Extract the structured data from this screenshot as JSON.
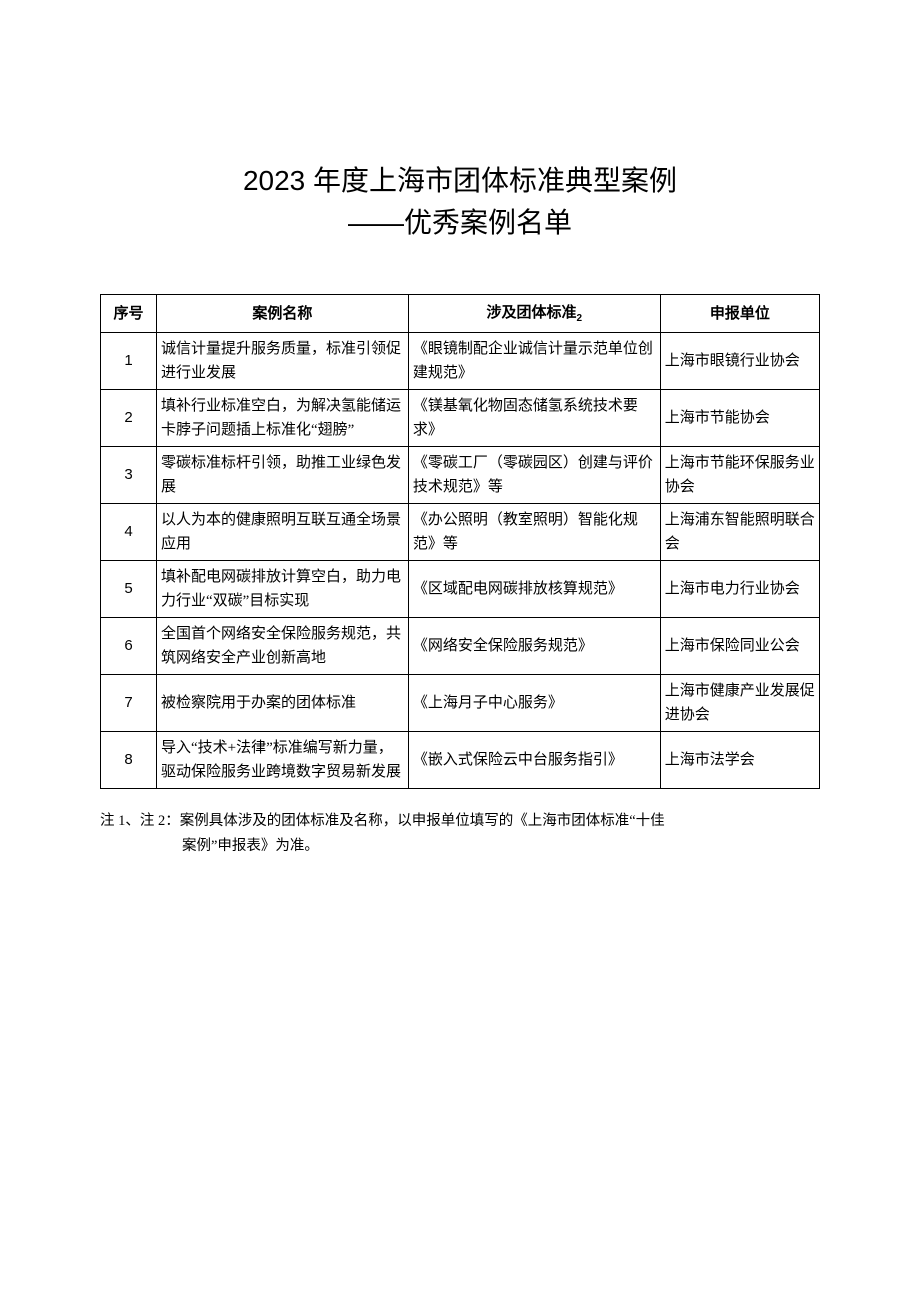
{
  "title": {
    "line1": "2023 年度上海市团体标准典型案例",
    "line2": "——优秀案例名单"
  },
  "table": {
    "columns": {
      "seq": "序号",
      "name": "案例名称",
      "std_prefix": "涉及团体标准",
      "std_sub": "2",
      "org": "申报单位"
    },
    "rows": [
      {
        "seq": "1",
        "name": "诚信计量提升服务质量，标准引领促进行业发展",
        "std": "《眼镜制配企业诚信计量示范单位创建规范》",
        "org": "上海市眼镜行业协会"
      },
      {
        "seq": "2",
        "name": "填补行业标准空白，为解决氢能储运卡脖子问题插上标准化“翅膀”",
        "std": "《镁基氧化物固态储氢系统技术要求》",
        "org": "上海市节能协会"
      },
      {
        "seq": "3",
        "name": "零碳标准标杆引领，助推工业绿色发展",
        "std": "《零碳工厂（零碳园区）创建与评价技术规范》等",
        "org": "上海市节能环保服务业协会"
      },
      {
        "seq": "4",
        "name": "以人为本的健康照明互联互通全场景应用",
        "std": "《办公照明（教室照明）智能化规范》等",
        "org": "上海浦东智能照明联合会"
      },
      {
        "seq": "5",
        "name": "填补配电网碳排放计算空白，助力电力行业“双碳”目标实现",
        "std": "《区域配电网碳排放核算规范》",
        "org": "上海市电力行业协会"
      },
      {
        "seq": "6",
        "name": "全国首个网络安全保险服务规范，共筑网络安全产业创新高地",
        "std": "《网络安全保险服务规范》",
        "org": "上海市保险同业公会"
      },
      {
        "seq": "7",
        "name": "被检察院用于办案的团体标准",
        "std": "《上海月子中心服务》",
        "org": "上海市健康产业发展促进协会"
      },
      {
        "seq": "8",
        "name": "导入“技术+法律”标准编写新力量，驱动保险服务业跨境数字贸易新发展",
        "std": "《嵌入式保险云中台服务指引》",
        "org": "上海市法学会"
      }
    ],
    "col_widths": {
      "seq": 52,
      "name": 234,
      "std": 234,
      "org": 148
    }
  },
  "footnote": {
    "line1": "注 1、注 2：案例具体涉及的团体标准及名称，以申报单位填写的《上海市团体标准“十佳",
    "line2": "案例”申报表》为准。"
  },
  "styling": {
    "body_bg": "#ffffff",
    "text_color": "#000000",
    "border_color": "#000000",
    "title_fontsize": 28,
    "cell_fontsize": 15,
    "footnote_fontsize": 14.5
  }
}
